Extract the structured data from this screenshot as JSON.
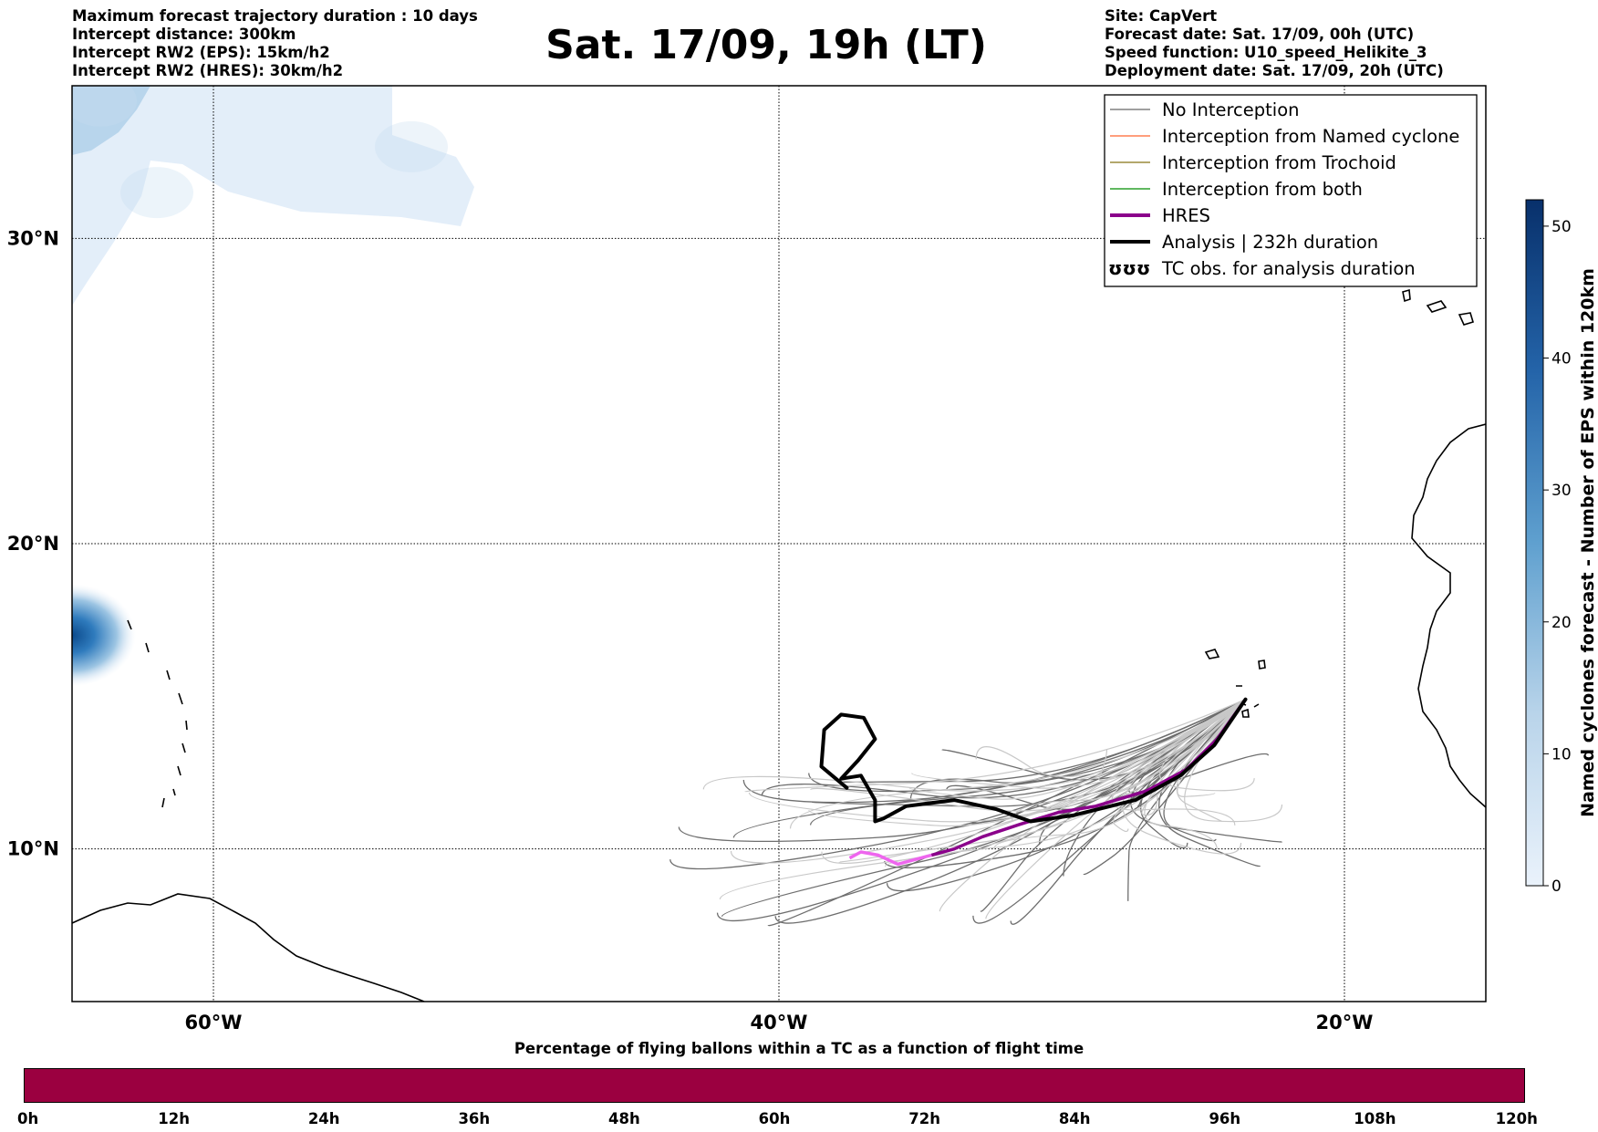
{
  "header": {
    "title": "Sat. 17/09, 19h (LT)",
    "left_info": [
      "Maximum forecast trajectory duration : 10 days",
      "Intercept distance: 300km",
      "Intercept RW2 (EPS):  15km/h2",
      "Intercept RW2 (HRES): 30km/h2"
    ],
    "right_info": [
      "Site: CapVert",
      "Forecast date: Sat. 17/09, 00h (UTC)",
      "Speed function: U10_speed_Helikite_3",
      "Deployment date: Sat. 17/09, 20h (UTC)"
    ]
  },
  "map": {
    "lon_range": [
      -65,
      -15
    ],
    "lat_range": [
      5,
      35
    ],
    "lon_ticks": [
      {
        "value": -60,
        "label": "60°W"
      },
      {
        "value": -40,
        "label": "40°W"
      },
      {
        "value": -20,
        "label": "20°W"
      }
    ],
    "lat_ticks": [
      {
        "value": 30,
        "label": "30°N"
      },
      {
        "value": 20,
        "label": "20°N"
      },
      {
        "value": 10,
        "label": "10°N"
      }
    ],
    "launch_site": {
      "lon": -23.5,
      "lat": 14.9
    },
    "analysis_track": [
      [
        -23.5,
        14.9
      ],
      [
        -24.6,
        13.4
      ],
      [
        -25.8,
        12.4
      ],
      [
        -27.4,
        11.6
      ],
      [
        -29.6,
        11.1
      ],
      [
        -31.1,
        10.9
      ],
      [
        -32.3,
        11.3
      ],
      [
        -33.8,
        11.6
      ],
      [
        -35.5,
        11.4
      ],
      [
        -36.3,
        11.0
      ],
      [
        -36.6,
        10.9
      ],
      [
        -36.6,
        11.6
      ],
      [
        -37.1,
        12.4
      ],
      [
        -37.8,
        12.3
      ],
      [
        -37.2,
        12.9
      ],
      [
        -36.6,
        13.6
      ],
      [
        -37.0,
        14.3
      ],
      [
        -37.8,
        14.4
      ],
      [
        -38.4,
        13.9
      ],
      [
        -38.5,
        12.7
      ],
      [
        -37.6,
        12.0
      ]
    ],
    "hres_track": [
      [
        -23.5,
        14.9
      ],
      [
        -24.5,
        13.6
      ],
      [
        -25.6,
        12.6
      ],
      [
        -27.0,
        11.9
      ],
      [
        -28.8,
        11.4
      ],
      [
        -30.1,
        11.2
      ],
      [
        -31.5,
        10.8
      ],
      [
        -32.8,
        10.4
      ],
      [
        -33.8,
        10.0
      ],
      [
        -34.6,
        9.8
      ],
      [
        -35.8,
        9.5
      ],
      [
        -36.5,
        9.8
      ],
      [
        -37.1,
        9.9
      ],
      [
        -37.5,
        9.7
      ]
    ],
    "hres_faded_from_index": 9,
    "cyclone_field": {
      "vmax": 52,
      "blobs": [
        {
          "lon": -65,
          "lat": 17.0,
          "value": 48
        },
        {
          "lon": -64,
          "lat": 34.5,
          "value": 10
        },
        {
          "lon": -62,
          "lat": 31.5,
          "value": 4
        },
        {
          "lon": -53,
          "lat": 33.0,
          "value": 3
        }
      ]
    }
  },
  "legend": {
    "entries": [
      {
        "label": "No Interception",
        "color": "#808080",
        "style": "thin"
      },
      {
        "label": "Interception from Named cyclone",
        "color": "#ff7f50",
        "style": "thin"
      },
      {
        "label": "Interception from Trochoid",
        "color": "#9a8a3c",
        "style": "thin"
      },
      {
        "label": "Interception from both",
        "color": "#2ca02c",
        "style": "thin"
      },
      {
        "label": "HRES",
        "color": "#8b008b",
        "style": "thick"
      },
      {
        "label": "Analysis | 232h duration",
        "color": "#000000",
        "style": "thick"
      },
      {
        "label": "TC obs. for analysis duration",
        "color": "#000000",
        "style": "symbol",
        "symbol": "ʊʊʊ"
      }
    ]
  },
  "colorbar": {
    "label": "Named cyclones forecast - Number of EPS within 120km",
    "min": 0,
    "max": 52,
    "ticks": [
      0,
      10,
      20,
      30,
      40,
      50
    ],
    "color_low": "#e8f0fa",
    "color_high": "#08306b"
  },
  "time_bar": {
    "title": "Percentage of flying ballons within a TC as a function of flight time",
    "color": "#9b0040",
    "ticks": [
      "0h",
      "12h",
      "24h",
      "36h",
      "48h",
      "60h",
      "72h",
      "84h",
      "96h",
      "108h",
      "120h"
    ]
  }
}
